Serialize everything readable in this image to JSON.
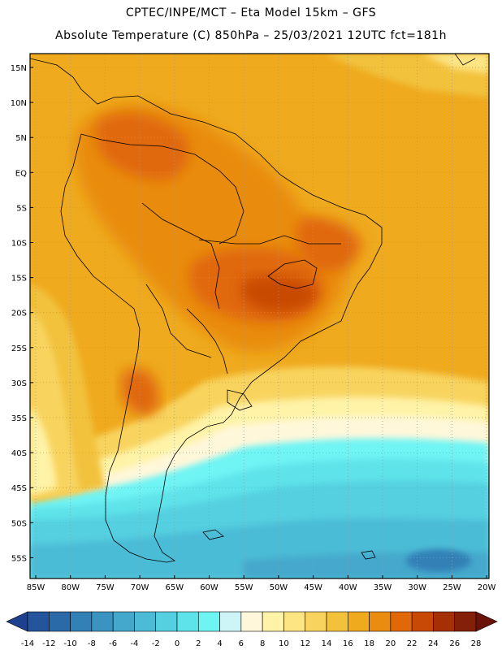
{
  "header": {
    "line1": "CPTEC/INPE/MCT –  Eta Model 15km – GFS",
    "line2": "Absolute Temperature (C) 850hPa – 25/03/2021 12UTC fct=181h"
  },
  "map": {
    "lat_labels": [
      "15N",
      "10N",
      "5N",
      "EQ",
      "5S",
      "10S",
      "15S",
      "20S",
      "25S",
      "30S",
      "35S",
      "40S",
      "45S",
      "50S",
      "55S"
    ],
    "lon_labels": [
      "85W",
      "80W",
      "75W",
      "70W",
      "65W",
      "60W",
      "55W",
      "50W",
      "45W",
      "40W",
      "35W",
      "30W",
      "25W",
      "20W"
    ],
    "grid": "dotted"
  },
  "colorbar": {
    "labels": [
      "-14",
      "-12",
      "-10",
      "-8",
      "-6",
      "-4",
      "-2",
      "0",
      "2",
      "4",
      "6",
      "8",
      "10",
      "12",
      "14",
      "16",
      "18",
      "20",
      "22",
      "24",
      "26",
      "28"
    ],
    "colors": [
      "#1f3f8f",
      "#24559c",
      "#2a6aa8",
      "#3280b6",
      "#3a94c2",
      "#44a8cc",
      "#4cbcd6",
      "#55d0e0",
      "#5ee3ea",
      "#6ff4f4",
      "#cdf5f7",
      "#fff7da",
      "#fff3a8",
      "#fde584",
      "#f8d45e",
      "#f2c23c",
      "#efaa1e",
      "#e98c10",
      "#e06808",
      "#c84806",
      "#a63006",
      "#84200a",
      "#6a1208"
    ]
  }
}
